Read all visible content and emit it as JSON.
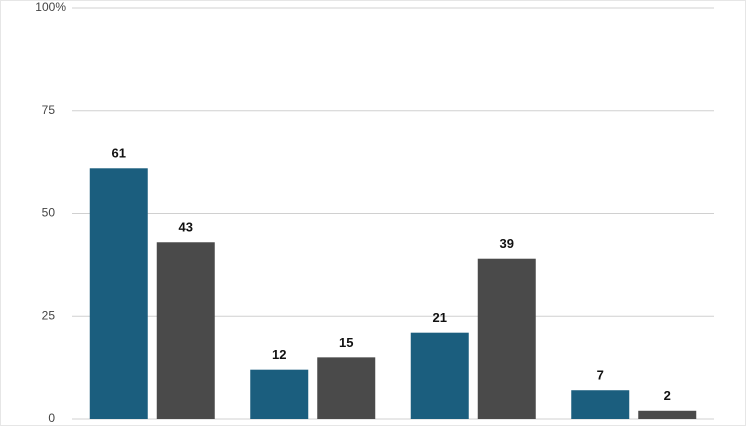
{
  "chart_data": {
    "type": "bar",
    "categories": [
      null,
      null,
      null,
      null
    ],
    "series": [
      {
        "color": "#1b5e7e",
        "values": [
          61,
          12,
          21,
          7
        ]
      },
      {
        "color": "#4a4a4a",
        "values": [
          43,
          15,
          39,
          2
        ]
      }
    ],
    "ylim": [
      0,
      100
    ],
    "yticks": [
      0,
      25,
      50,
      75,
      {
        "value": 100,
        "label": "100%"
      }
    ],
    "grid": true
  }
}
